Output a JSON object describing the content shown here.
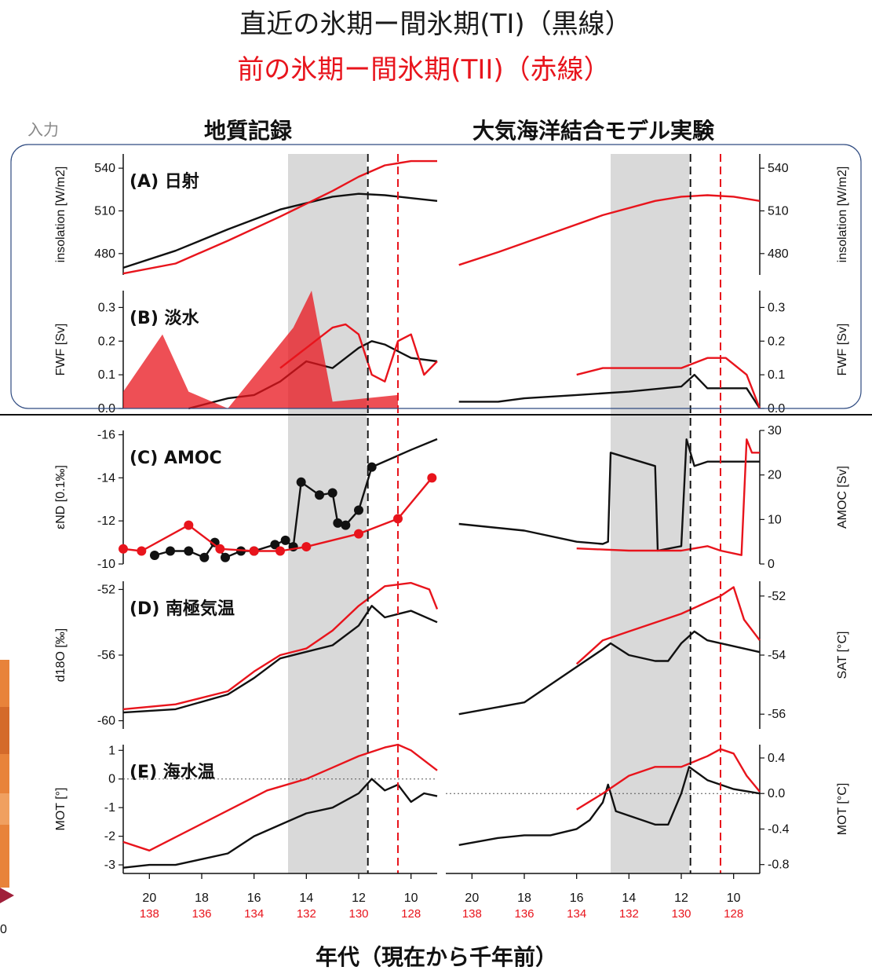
{
  "title": {
    "line1": "直近の氷期ー間氷期(TI)（黒線）",
    "line2": "前の氷期ー間氷期(TII)（赤線）"
  },
  "headers": {
    "input_label": "入力",
    "left": "地質記録",
    "right": "大気海洋結合モデル実験"
  },
  "xlabel": "年代（現在から千年前）",
  "x_ticks_top": [
    "20",
    "18",
    "16",
    "14",
    "12",
    "10"
  ],
  "x_ticks_bottom": [
    "138",
    "136",
    "134",
    "132",
    "130",
    "128"
  ],
  "left_edge_tick": "0",
  "colors": {
    "ti": "#111111",
    "tii": "#e8141c",
    "shade": "#d9d9d9",
    "box": "#2e4a80"
  },
  "panels": [
    {
      "id": "A",
      "label": "(A) 日射",
      "left_ylabel": "insolation [W/m2]",
      "right_ylabel": "insolation [W/m2]",
      "left_ticks": [
        "540",
        "510",
        "480"
      ],
      "right_ticks": [
        "540",
        "510",
        "480"
      ]
    },
    {
      "id": "B",
      "label": "(B) 淡水",
      "left_ylabel": "FWF [Sv]",
      "right_ylabel": "FWF [Sv]",
      "left_ticks": [
        "0.3",
        "0.2",
        "0.1",
        "0.0"
      ],
      "right_ticks": [
        "0.3",
        "0.2",
        "0.1",
        "0.0"
      ]
    },
    {
      "id": "C",
      "label": "(C) AMOC",
      "left_ylabel": "εND [0.1‰]",
      "right_ylabel": "AMOC [Sv]",
      "left_ticks": [
        "-16",
        "-14",
        "-12",
        "-10"
      ],
      "right_ticks": [
        "30",
        "20",
        "10",
        "0"
      ]
    },
    {
      "id": "D",
      "label": "(D) 南極気温",
      "left_ylabel": "d18O [‰]",
      "right_ylabel": "SAT [°C]",
      "left_ticks": [
        "-52",
        "-56",
        "-60"
      ],
      "right_ticks": [
        "-52",
        "-54",
        "-56"
      ]
    },
    {
      "id": "E",
      "label": "(E) 海水温",
      "left_ylabel": "MOT [°]",
      "right_ylabel": "MOT [°C]",
      "left_ticks": [
        "1",
        "0",
        "-1",
        "-2",
        "-3"
      ],
      "right_ticks": [
        "0.4",
        "0.0",
        "-0.4",
        "-0.8"
      ]
    }
  ],
  "chart_data": {
    "type": "line",
    "title": "直近の氷期ー間氷期(TI)（黒線） / 前の氷期ー間氷期(TII)（赤線）",
    "xlabel": "年代（現在から千年前）",
    "x_units": "ka (TI) / ka (TII = TI + 118)",
    "xlim": [
      21,
      9
    ],
    "shaded_interval_ka": [
      14.7,
      11.7
    ],
    "event_lines_ka": {
      "TI_black_dashed": 11.65,
      "TII_red_dashed": 10.5
    },
    "panels": [
      {
        "id": "A",
        "name": "日射",
        "ylabel": "insolation [W/m2]",
        "ylim": [
          465,
          550
        ],
        "left": {
          "series": [
            {
              "name": "TI",
              "x": [
                21,
                19,
                17,
                15,
                13,
                12,
                11,
                10,
                9
              ],
              "y": [
                470,
                482,
                497,
                511,
                520,
                522,
                521,
                519,
                517
              ]
            },
            {
              "name": "TII",
              "x": [
                21,
                19,
                17,
                15,
                13,
                12,
                11,
                10,
                9
              ],
              "y": [
                466,
                473,
                489,
                506,
                524,
                534,
                542,
                545,
                545
              ]
            }
          ]
        },
        "right": {
          "series": [
            {
              "name": "TII",
              "x": [
                20.5,
                19,
                17,
                15,
                13,
                12,
                11,
                10,
                9
              ],
              "y": [
                472,
                481,
                494,
                507,
                517,
                520,
                521,
                520,
                517
              ]
            }
          ]
        }
      },
      {
        "id": "B",
        "name": "淡水",
        "ylabel": "FWF [Sv]",
        "ylim": [
          0,
          0.35
        ],
        "left": {
          "series": [
            {
              "name": "TI",
              "x": [
                18.5,
                17,
                16,
                15,
                14,
                13,
                12,
                11.5,
                11,
                10,
                9
              ],
              "y": [
                0.0,
                0.03,
                0.04,
                0.08,
                0.14,
                0.12,
                0.18,
                0.2,
                0.19,
                0.15,
                0.14
              ]
            },
            {
              "name": "TII",
              "x": [
                15,
                14,
                13,
                12.5,
                12,
                11.5,
                11,
                10.5,
                10,
                9.5,
                9
              ],
              "y": [
                0.12,
                0.18,
                0.24,
                0.25,
                0.22,
                0.1,
                0.08,
                0.2,
                0.22,
                0.1,
                0.14
              ]
            },
            {
              "name": "TII envelope",
              "x": [
                21,
                19.5,
                18.5,
                17,
                14.5,
                13.8,
                13,
                10.5
              ],
              "y": [
                0.05,
                0.22,
                0.05,
                0.0,
                0.24,
                0.35,
                0.02,
                0.04
              ]
            }
          ]
        },
        "right": {
          "series": [
            {
              "name": "TI",
              "x": [
                20.5,
                19,
                18,
                16,
                14,
                12,
                11.5,
                11,
                9.5,
                9
              ],
              "y": [
                0.02,
                0.02,
                0.03,
                0.04,
                0.05,
                0.065,
                0.1,
                0.06,
                0.06,
                0.0
              ]
            },
            {
              "name": "TII",
              "x": [
                16,
                15,
                14,
                12,
                11,
                10.3,
                9.5,
                9
              ],
              "y": [
                0.1,
                0.12,
                0.12,
                0.12,
                0.15,
                0.15,
                0.1,
                0.0
              ]
            }
          ]
        }
      },
      {
        "id": "C",
        "name": "AMOC",
        "left": {
          "ylabel": "εND [0.1‰]",
          "ylim": [
            -10,
            -16.2
          ],
          "series": [
            {
              "name": "TI",
              "x": [
                19.8,
                19.2,
                18.5,
                17.9,
                17.5,
                17.1,
                16.5,
                16,
                15.2,
                14.8,
                14.5,
                14.2,
                13.5,
                13,
                12.8,
                12.5,
                12,
                11.5,
                10,
                9
              ],
              "y": [
                -10.4,
                -10.6,
                -10.6,
                -10.3,
                -11.0,
                -10.3,
                -10.6,
                -10.6,
                -10.9,
                -11.1,
                -10.8,
                -13.8,
                -13.2,
                -13.3,
                -11.9,
                -11.8,
                -12.5,
                -14.5,
                -15.3,
                -15.8
              ]
            },
            {
              "name": "TII",
              "x": [
                21,
                20.3,
                18.5,
                17.3,
                16,
                15,
                14,
                12,
                10.5,
                9.2
              ],
              "y": [
                -10.7,
                -10.6,
                -11.8,
                -10.7,
                -10.6,
                -10.6,
                -10.8,
                -11.4,
                -12.1,
                -14.0
              ]
            }
          ]
        },
        "right": {
          "ylabel": "AMOC [Sv]",
          "ylim": [
            0,
            30
          ],
          "series": [
            {
              "name": "TI",
              "x": [
                20.5,
                18,
                16,
                15,
                14.8,
                14.7,
                13,
                12.9,
                12,
                11.8,
                11.5,
                11,
                9
              ],
              "y": [
                9,
                7.5,
                5,
                4.5,
                5,
                25,
                22,
                3,
                4,
                28,
                22,
                23,
                23
              ]
            },
            {
              "name": "TII",
              "x": [
                16,
                14,
                12,
                11,
                10.5,
                9.7,
                9.5,
                9.3,
                9
              ],
              "y": [
                3.5,
                3,
                3,
                4,
                3,
                2,
                28,
                25,
                25
              ]
            }
          ]
        }
      },
      {
        "id": "D",
        "name": "南極気温",
        "left": {
          "ylabel": "d18O [‰]",
          "ylim": [
            -60.5,
            -51.5
          ],
          "series": [
            {
              "name": "TI",
              "x": [
                21,
                19,
                17,
                16,
                15,
                14,
                13,
                12,
                11.5,
                11,
                10,
                9
              ],
              "y": [
                -59.5,
                -59.3,
                -58.4,
                -57.4,
                -56.2,
                -55.8,
                -55.4,
                -54.2,
                -53.0,
                -53.7,
                -53.3,
                -54.0
              ]
            },
            {
              "name": "TII",
              "x": [
                21,
                19,
                17,
                16,
                15,
                14,
                13,
                12,
                11,
                10,
                9.3,
                9
              ],
              "y": [
                -59.3,
                -59.0,
                -58.2,
                -57.0,
                -56.0,
                -55.6,
                -54.5,
                -53.0,
                -51.8,
                -51.6,
                -52.0,
                -53.2
              ]
            }
          ]
        },
        "right": {
          "ylabel": "SAT [°C]",
          "ylim": [
            -56.5,
            -51.5
          ],
          "series": [
            {
              "name": "TI",
              "x": [
                20.5,
                18,
                17,
                16,
                15,
                14.7,
                14,
                13,
                12.5,
                12,
                11.5,
                11,
                10,
                9
              ],
              "y": [
                -56,
                -55.6,
                -55.0,
                -54.4,
                -53.8,
                -53.6,
                -54.0,
                -54.2,
                -54.2,
                -53.6,
                -53.2,
                -53.5,
                -53.7,
                -53.9
              ]
            },
            {
              "name": "TII",
              "x": [
                16,
                15,
                14,
                13,
                12,
                11,
                10.5,
                10,
                9.6,
                9
              ],
              "y": [
                -54.3,
                -53.5,
                -53.2,
                -52.9,
                -52.6,
                -52.2,
                -52.0,
                -51.7,
                -52.8,
                -53.5
              ]
            }
          ]
        }
      },
      {
        "id": "E",
        "name": "海水温",
        "left": {
          "ylabel": "MOT [°]",
          "ylim": [
            -3.3,
            1.2
          ],
          "series": [
            {
              "name": "TI",
              "x": [
                21,
                20,
                19,
                18,
                17,
                16,
                15,
                14,
                13,
                12,
                11.5,
                11,
                10.5,
                10,
                9.5,
                9
              ],
              "y": [
                -3.1,
                -3.0,
                -3.0,
                -2.8,
                -2.6,
                -2.0,
                -1.6,
                -1.2,
                -1.0,
                -0.5,
                0.0,
                -0.4,
                -0.2,
                -0.8,
                -0.5,
                -0.6
              ]
            },
            {
              "name": "TII",
              "x": [
                21,
                20,
                15.5,
                14,
                13,
                12,
                11,
                10.5,
                10,
                9
              ],
              "y": [
                -2.2,
                -2.5,
                -0.4,
                0.0,
                0.4,
                0.8,
                1.1,
                1.2,
                1.0,
                0.3
              ]
            }
          ]
        },
        "right": {
          "ylabel": "MOT [°C]",
          "ylim": [
            -0.9,
            0.55
          ],
          "series": [
            {
              "name": "TI",
              "x": [
                20.5,
                19,
                18,
                17,
                16,
                15.5,
                15,
                14.8,
                14.5,
                13,
                12.5,
                12,
                11.7,
                11,
                10,
                9
              ],
              "y": [
                -0.58,
                -0.5,
                -0.47,
                -0.47,
                -0.4,
                -0.3,
                -0.1,
                0.1,
                -0.2,
                -0.35,
                -0.35,
                0.0,
                0.3,
                0.15,
                0.05,
                0.0
              ]
            },
            {
              "name": "TII",
              "x": [
                16,
                15,
                14,
                13,
                12,
                11,
                10.5,
                10,
                9.5,
                9
              ],
              "y": [
                -0.18,
                0.0,
                0.2,
                0.3,
                0.3,
                0.42,
                0.5,
                0.45,
                0.2,
                0.02
              ]
            }
          ]
        }
      }
    ]
  }
}
